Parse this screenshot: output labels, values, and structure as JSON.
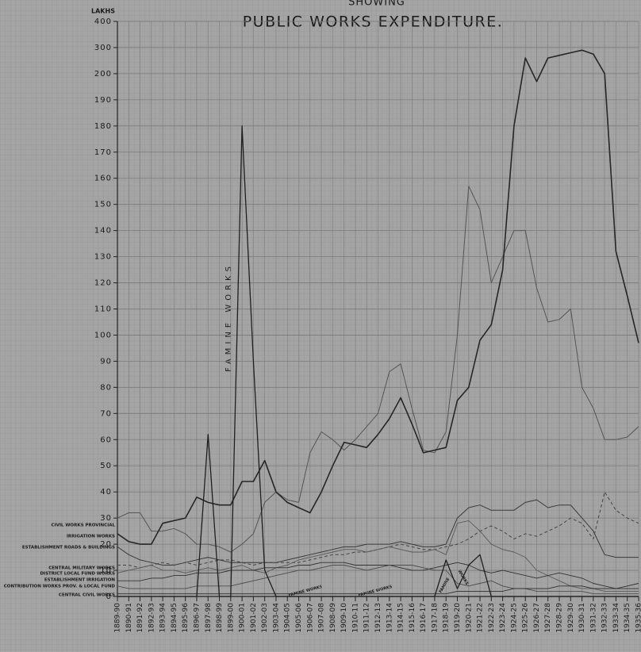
{
  "chart_data": {
    "type": "line",
    "title": "PUBLIC WORKS EXPENDITURE.",
    "subtitle": "SHOWING",
    "y_label": "LAKHS",
    "annotations": [
      "FAMINE WORKS",
      "FAMINE WORKS",
      "FAMINE WORKS",
      "FAMINE",
      "WORKS"
    ],
    "categories": [
      "1889-90",
      "1890-91",
      "1891-92",
      "1892-93",
      "1893-94",
      "1894-95",
      "1895-96",
      "1896-97",
      "1897-98",
      "1898-99",
      "1899-00",
      "1900-01",
      "1901-02",
      "1902-03",
      "1903-04",
      "1904-05",
      "1905-06",
      "1906-07",
      "1907-08",
      "1908-09",
      "1909-10",
      "1910-11",
      "1911-12",
      "1912-13",
      "1913-14",
      "1914-15",
      "1915-16",
      "1916-17",
      "1917-18",
      "1918-19",
      "1919-20",
      "1920-21",
      "1921-22",
      "1922-23",
      "1923-24",
      "1924-25",
      "1925-26",
      "1926-27",
      "1927-28",
      "1928-29",
      "1929-30",
      "1930-31",
      "1931-32",
      "1932-33",
      "1933-34",
      "1934-35",
      "1935-36"
    ],
    "ylim": [
      0,
      400
    ],
    "yticks": [
      0,
      10,
      20,
      30,
      40,
      50,
      60,
      70,
      80,
      90,
      100,
      110,
      120,
      130,
      140,
      150,
      160,
      170,
      180,
      190,
      200,
      300,
      400
    ],
    "grid": true,
    "series": [
      {
        "name": "CIVIL WORKS PROVINCIAL",
        "color": "#555555",
        "values": [
          30,
          32,
          32,
          25,
          25,
          26,
          24,
          20,
          20,
          19,
          17,
          20,
          24,
          36,
          40,
          37,
          36,
          55,
          63,
          60,
          56,
          60,
          65,
          70,
          86,
          89,
          72,
          56,
          55,
          63,
          100,
          157,
          148,
          120,
          130,
          140,
          140,
          118,
          105,
          106,
          110,
          80,
          72,
          60,
          60,
          61,
          65
        ]
      },
      {
        "name": "IRRIGATION WORKS",
        "color": "#262626",
        "values": [
          24,
          21,
          20,
          20,
          28,
          29,
          30,
          38,
          36,
          35,
          35,
          44,
          44,
          52,
          40,
          36,
          34,
          32,
          40,
          50,
          59,
          58,
          57,
          62,
          68,
          76,
          66,
          55,
          56,
          57,
          75,
          80,
          98,
          104,
          125,
          180,
          260,
          197,
          260,
          270,
          280,
          290,
          275,
          200,
          132,
          115,
          97
        ]
      },
      {
        "name": "ESTABLISHMENT ROADS & BUILDINGS",
        "color": "#3a3a3a",
        "values": [
          19,
          16,
          14,
          13,
          12,
          12,
          13,
          14,
          15,
          14,
          13,
          13,
          13,
          13,
          13,
          14,
          15,
          16,
          17,
          18,
          19,
          19,
          20,
          20,
          20,
          21,
          20,
          19,
          19,
          20,
          30,
          34,
          35,
          33,
          33,
          33,
          36,
          37,
          34,
          35,
          35,
          30,
          25,
          16,
          15,
          15,
          15
        ]
      },
      {
        "name": "CENTRAL MILITARY WORKS",
        "color": "#444444",
        "values": [
          12,
          12,
          11,
          12,
          13,
          12,
          13,
          12,
          13,
          14,
          14,
          13,
          12,
          13,
          13,
          13,
          13,
          14,
          15,
          16,
          16,
          17,
          17,
          18,
          19,
          20,
          19,
          18,
          18,
          19,
          20,
          22,
          25,
          27,
          25,
          22,
          24,
          23,
          25,
          27,
          30,
          28,
          22,
          40,
          33,
          30,
          28
        ]
      },
      {
        "name": "DISTRICT LOCAL FUND WORKS",
        "color": "#5a5a5a",
        "values": [
          9,
          10,
          11,
          12,
          10,
          10,
          9,
          10,
          11,
          10,
          11,
          12,
          10,
          9,
          11,
          12,
          14,
          15,
          16,
          17,
          18,
          18,
          17,
          18,
          19,
          18,
          17,
          17,
          18,
          16,
          28,
          29,
          25,
          20,
          18,
          17,
          15,
          10,
          8,
          6,
          4,
          3,
          3,
          2,
          2,
          2,
          2
        ]
      },
      {
        "name": "ESTABLISHMENT IRRIGATION",
        "color": "#333333",
        "values": [
          6,
          6,
          6,
          7,
          7,
          8,
          8,
          9,
          9,
          9,
          10,
          10,
          10,
          11,
          11,
          11,
          12,
          12,
          13,
          13,
          13,
          12,
          12,
          12,
          12,
          11,
          10,
          10,
          11,
          12,
          13,
          12,
          10,
          9,
          10,
          9,
          8,
          7,
          8,
          9,
          8,
          7,
          5,
          4,
          3,
          3,
          3
        ]
      },
      {
        "name": "CONTRIBUTION WORKS PROV. & LOCAL FUND",
        "color": "#4d4d4d",
        "values": [
          4,
          3,
          3,
          3,
          3,
          3,
          3,
          4,
          4,
          4,
          4,
          5,
          6,
          7,
          8,
          9,
          10,
          10,
          11,
          12,
          12,
          11,
          10,
          11,
          12,
          12,
          12,
          11,
          10,
          10,
          5,
          4,
          5,
          6,
          4,
          3,
          3,
          2,
          2,
          2,
          2,
          2,
          1,
          1,
          1,
          1,
          1
        ]
      },
      {
        "name": "CENTRAL CIVIL WORKS",
        "color": "#2e2e2e",
        "values": [
          1,
          1,
          1,
          1,
          1,
          1,
          1,
          1,
          1,
          1,
          1,
          1,
          1,
          1,
          1,
          1,
          1,
          1,
          1,
          1,
          1,
          1,
          1,
          1,
          1,
          1,
          1,
          1,
          1,
          1,
          2,
          2,
          2,
          2,
          2,
          3,
          3,
          3,
          3,
          4,
          4,
          4,
          3,
          3,
          3,
          4,
          5
        ]
      },
      {
        "name": "FAMINE WORKS",
        "color": "#1f1f1f",
        "values": [
          0,
          0,
          0,
          0,
          0,
          0,
          0,
          0,
          62,
          0,
          0,
          180,
          90,
          10,
          0,
          0,
          0,
          0,
          0,
          0,
          0,
          0,
          0,
          0,
          0,
          0,
          0,
          0,
          0,
          14,
          3,
          12,
          16,
          0,
          0,
          0,
          0,
          0,
          0,
          0,
          0,
          0,
          0,
          0,
          0,
          0,
          0
        ]
      }
    ]
  }
}
